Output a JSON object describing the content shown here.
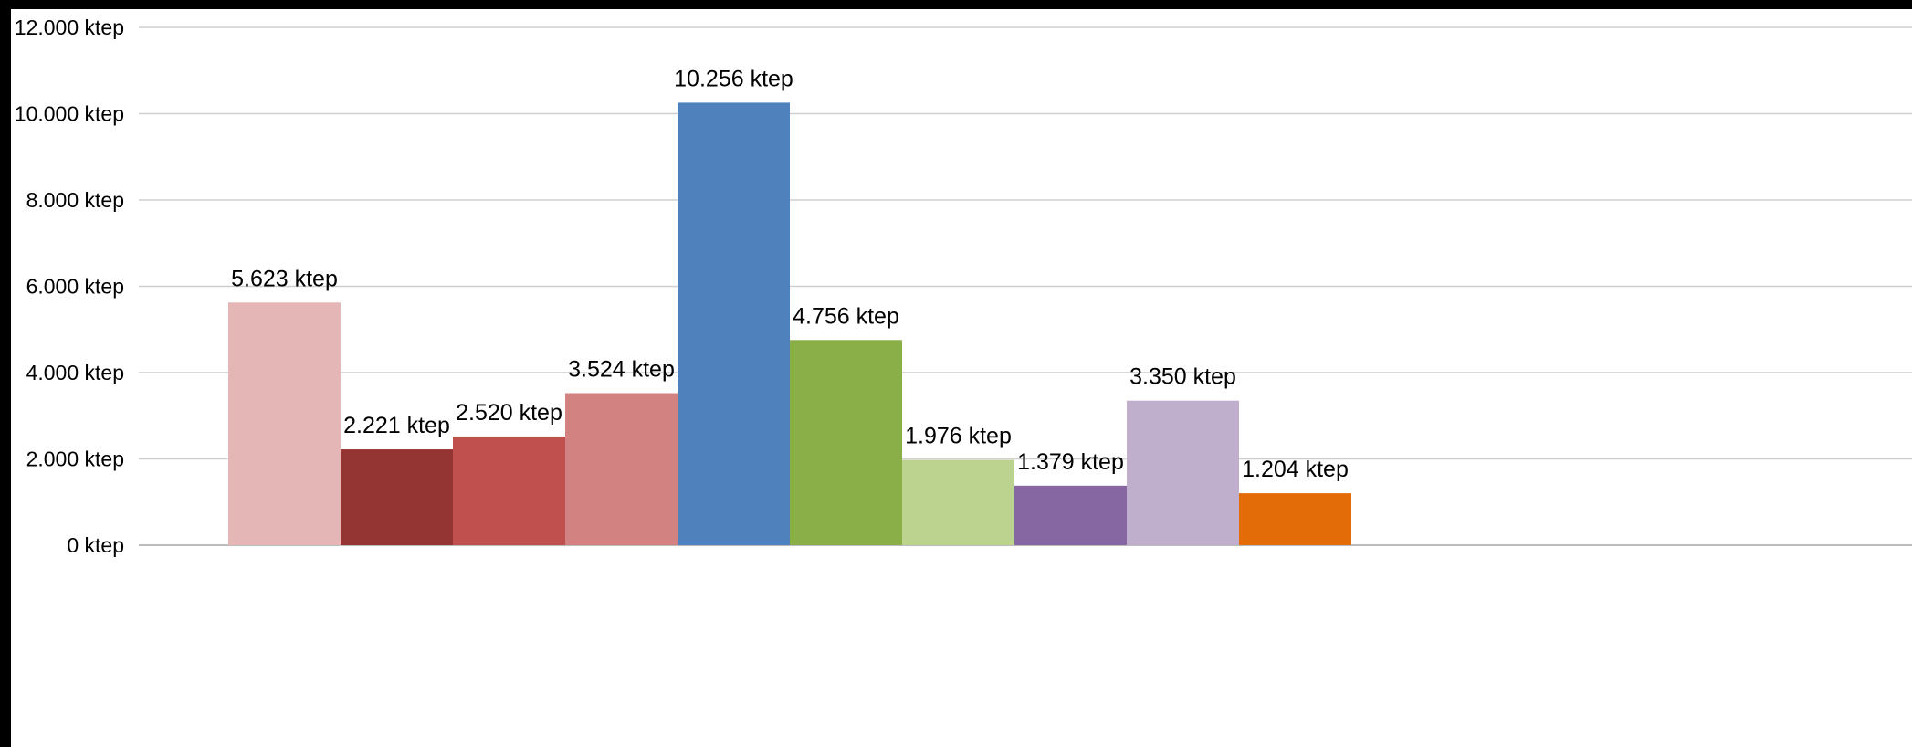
{
  "chart_data": {
    "type": "bar",
    "title": "",
    "xlabel": "",
    "ylabel": "",
    "unit": "ktep",
    "ylim": [
      0,
      12000
    ],
    "grid": true,
    "legend": "none",
    "y_ticks": [
      {
        "value": 0,
        "label": "0 ktep"
      },
      {
        "value": 2000,
        "label": "2.000 ktep"
      },
      {
        "value": 4000,
        "label": "4.000 ktep"
      },
      {
        "value": 6000,
        "label": "6.000 ktep"
      },
      {
        "value": 8000,
        "label": "8.000 ktep"
      },
      {
        "value": 10000,
        "label": "10.000 ktep"
      },
      {
        "value": 12000,
        "label": "12.000 ktep"
      }
    ],
    "bars": [
      {
        "value": 5623,
        "label": "5.623 ktep",
        "color": "#E4B6B5"
      },
      {
        "value": 2221,
        "label": "2.221 ktep",
        "color": "#943534"
      },
      {
        "value": 2520,
        "label": "2.520 ktep",
        "color": "#C0504D"
      },
      {
        "value": 3524,
        "label": "3.524 ktep",
        "color": "#D28281"
      },
      {
        "value": 10256,
        "label": "10.256 ktep",
        "color": "#4F81BD"
      },
      {
        "value": 4756,
        "label": "4.756 ktep",
        "color": "#8AAF49"
      },
      {
        "value": 1976,
        "label": "1.976 ktep",
        "color": "#BCD38F"
      },
      {
        "value": 1379,
        "label": "1.379 ktep",
        "color": "#8767A2"
      },
      {
        "value": 3350,
        "label": "3.350 ktep",
        "color": "#C0AFCC"
      },
      {
        "value": 1204,
        "label": "1.204 ktep",
        "color": "#E36C09"
      }
    ]
  }
}
